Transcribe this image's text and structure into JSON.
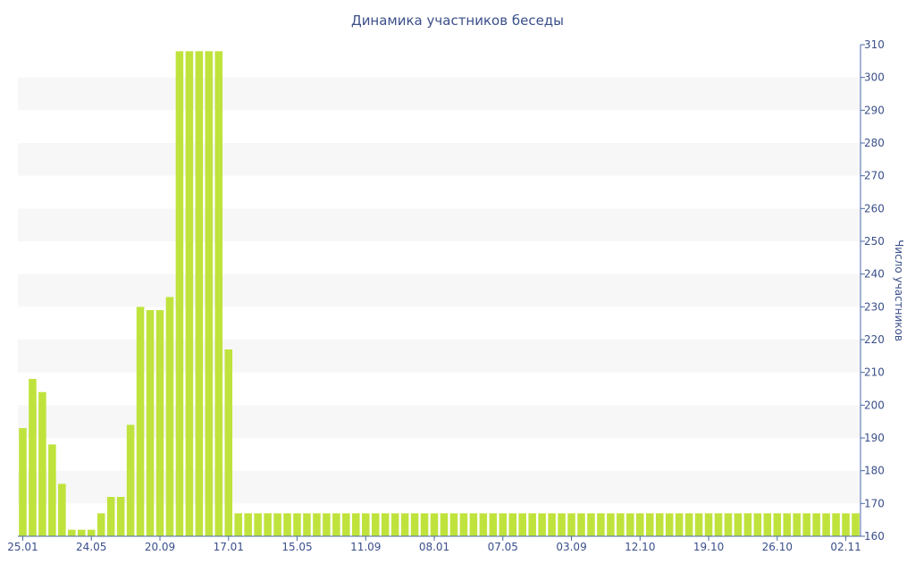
{
  "chart_data": {
    "type": "bar",
    "title": "Динамика участников беседы",
    "ylabel": "Число участников",
    "xlabel": "",
    "ylim": [
      160,
      310
    ],
    "y_ticks": [
      160,
      170,
      180,
      190,
      200,
      210,
      220,
      230,
      240,
      250,
      260,
      270,
      280,
      290,
      300,
      310
    ],
    "x_tick_labels": [
      {
        "label": "25.01",
        "index": 0
      },
      {
        "label": "24.05",
        "index": 7
      },
      {
        "label": "20.09",
        "index": 14
      },
      {
        "label": "17.01",
        "index": 21
      },
      {
        "label": "15.05",
        "index": 28
      },
      {
        "label": "11.09",
        "index": 35
      },
      {
        "label": "08.01",
        "index": 42
      },
      {
        "label": "07.05",
        "index": 49
      },
      {
        "label": "03.09",
        "index": 56
      },
      {
        "label": "12.10",
        "index": 63
      },
      {
        "label": "19.10",
        "index": 70
      },
      {
        "label": "26.10",
        "index": 77
      },
      {
        "label": "02.11",
        "index": 84
      }
    ],
    "values": [
      193,
      208,
      204,
      188,
      176,
      162,
      162,
      162,
      167,
      172,
      172,
      194,
      230,
      229,
      229,
      233,
      308,
      308,
      308,
      308,
      308,
      217,
      167,
      167,
      167,
      167,
      167,
      167,
      167,
      167,
      167,
      167,
      167,
      167,
      167,
      167,
      167,
      167,
      167,
      167,
      167,
      167,
      167,
      167,
      167,
      167,
      167,
      167,
      167,
      167,
      167,
      167,
      167,
      167,
      167,
      167,
      167,
      167,
      167,
      167,
      167,
      167,
      167,
      167,
      167,
      167,
      167,
      167,
      167,
      167,
      167,
      167,
      167,
      167,
      167,
      167,
      167,
      167,
      167,
      167,
      167,
      167,
      167,
      167,
      167,
      167
    ],
    "bar_color": "#bfe33c",
    "band_color": "#f7f7f7",
    "text_color": "#3b4f8a",
    "axis_color": "#4a6aa8"
  }
}
